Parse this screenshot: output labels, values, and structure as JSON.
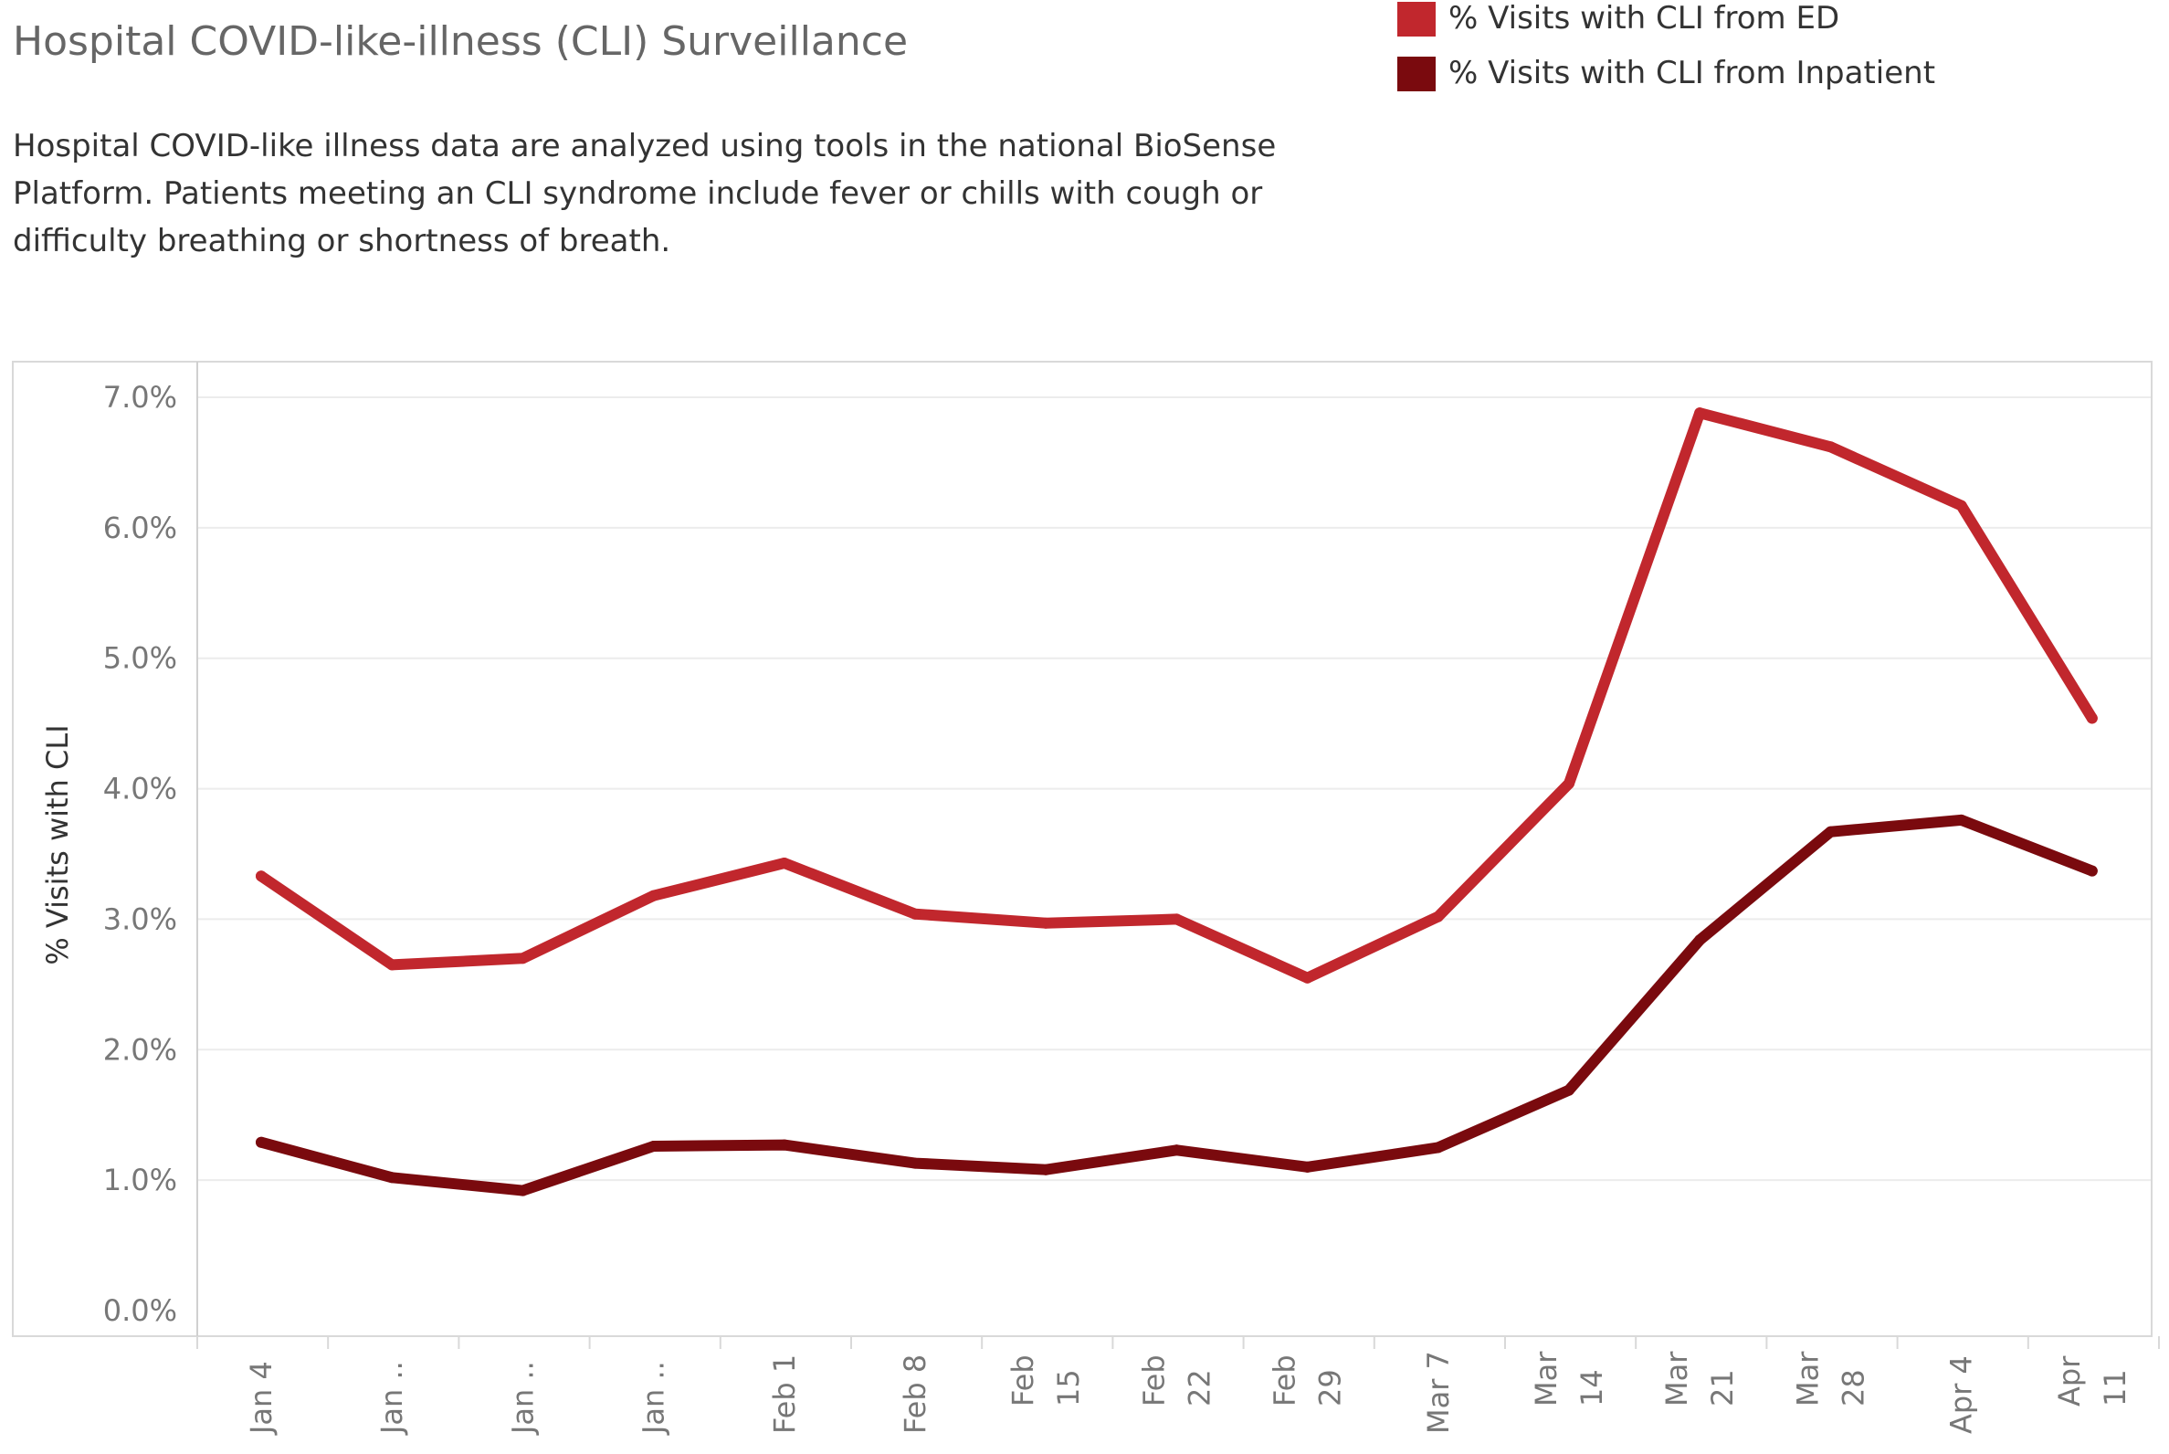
{
  "title": "Hospital COVID-like-illness (CLI) Surveillance",
  "description": "Hospital COVID-like illness data are analyzed using tools in the national BioSense Platform. Patients meeting an CLI syndrome include fever or chills with cough or difficulty breathing or shortness of breath.",
  "legend": {
    "items": [
      {
        "label": "% Visits with CLI from ED",
        "color": "#c1272d"
      },
      {
        "label": "% Visits with CLI from Inpatient",
        "color": "#7a0a0e"
      }
    ]
  },
  "chart_data": {
    "type": "line",
    "ylabel": "% Visits with CLI",
    "ylim": [
      0,
      7
    ],
    "yticks": [
      "0.0%",
      "1.0%",
      "2.0%",
      "3.0%",
      "4.0%",
      "5.0%",
      "6.0%",
      "7.0%"
    ],
    "grid": true,
    "legend_position": "top-right",
    "categories": [
      [
        "Jan 4"
      ],
      [
        "Jan .."
      ],
      [
        "Jan .."
      ],
      [
        "Jan .."
      ],
      [
        "Feb 1"
      ],
      [
        "Feb 8"
      ],
      [
        "Feb",
        "15"
      ],
      [
        "Feb",
        "22"
      ],
      [
        "Feb",
        "29"
      ],
      [
        "Mar 7"
      ],
      [
        "Mar",
        "14"
      ],
      [
        "Mar",
        "21"
      ],
      [
        "Mar",
        "28"
      ],
      [
        "Apr 4"
      ],
      [
        "Apr",
        "11"
      ]
    ],
    "series": [
      {
        "name": "% Visits with CLI from ED",
        "color": "#c1272d",
        "values": [
          3.33,
          2.65,
          2.7,
          3.18,
          3.43,
          3.04,
          2.97,
          3.0,
          2.55,
          3.02,
          4.04,
          6.88,
          6.62,
          6.17,
          4.54
        ]
      },
      {
        "name": "% Visits with CLI from Inpatient",
        "color": "#7a0a0e",
        "values": [
          1.29,
          1.02,
          0.92,
          1.26,
          1.27,
          1.13,
          1.08,
          1.23,
          1.1,
          1.25,
          1.69,
          2.84,
          3.67,
          3.76,
          3.37
        ]
      }
    ]
  }
}
